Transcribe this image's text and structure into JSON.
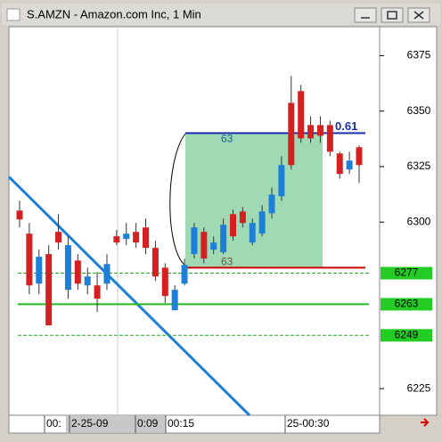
{
  "window_title": "S.AMZN - Amazon.com Inc, 1 Min",
  "chart_data": {
    "type": "candlestick",
    "colors": {
      "up": "#1e7fd8",
      "down": "#d42020"
    },
    "candles": [
      [
        6305.2,
        6309.6,
        6297.6,
        6301.2
      ],
      [
        6294.8,
        6299.6,
        6267.5,
        6271.5
      ],
      [
        6272.3,
        6287.6,
        6267.5,
        6284.4
      ],
      [
        6285.6,
        6289.6,
        6253.5,
        6253.5
      ],
      [
        6295.6,
        6303.6,
        6287.6,
        6290.8
      ],
      [
        6269.5,
        6293.6,
        6265.5,
        6289.6
      ],
      [
        6282.7,
        6285.6,
        6269.5,
        6272.3
      ],
      [
        6271.5,
        6279.5,
        6267.5,
        6275.5
      ],
      [
        6271.5,
        6277.5,
        6259.5,
        6265.5
      ],
      [
        6272.3,
        6285.6,
        6269.5,
        6281.1
      ],
      [
        6293.6,
        6296.4,
        6289.6,
        6290.8
      ],
      [
        6292.4,
        6299.6,
        6289.6,
        6294.8
      ],
      [
        6295.6,
        6299.6,
        6288.4,
        6290.8
      ],
      [
        6297.6,
        6301.6,
        6285.6,
        6288.4
      ],
      [
        6288.4,
        6291.6,
        6273.5,
        6275.5
      ],
      [
        6279.5,
        6281.5,
        6263.5,
        6266.7
      ],
      [
        6260.3,
        6271.5,
        6260.3,
        6269.5
      ],
      [
        6272.3,
        6283.6,
        6271.5,
        6280.7
      ],
      [
        6285.6,
        6299.6,
        6283.6,
        6297.6
      ],
      [
        6295.6,
        6297.6,
        6281.5,
        6283.6
      ],
      [
        6287.6,
        6293.6,
        6285.6,
        6290.8
      ],
      [
        6286.4,
        6301.6,
        6285.6,
        6298.8
      ],
      [
        6303.6,
        6305.6,
        6291.6,
        6293.6
      ],
      [
        6304.8,
        6306.8,
        6297.6,
        6299.6
      ],
      [
        6290.8,
        6301.6,
        6289.6,
        6299.6
      ],
      [
        6294.8,
        6307.6,
        6293.6,
        6304.8
      ],
      [
        6304.0,
        6315.6,
        6301.6,
        6312.4
      ],
      [
        6311.6,
        6329.7,
        6309.6,
        6325.7
      ],
      [
        6353.7,
        6365.8,
        6323.7,
        6325.7
      ],
      [
        6359.0,
        6361.8,
        6335.7,
        6337.7
      ],
      [
        6343.7,
        6347.7,
        6335.7,
        6337.7
      ],
      [
        6343.7,
        6347.7,
        6335.7,
        6338.9
      ],
      [
        6343.7,
        6345.7,
        6329.7,
        6331.7
      ],
      [
        6330.9,
        6331.7,
        6319.6,
        6321.7
      ],
      [
        6323.7,
        6331.7,
        6321.7,
        6327.7
      ],
      [
        6333.7,
        6334.5,
        6317.6,
        6325.7
      ]
    ],
    "ylim": [
      6213,
      6388
    ],
    "yticks": [
      6225,
      6300,
      6325,
      6350,
      6375
    ],
    "x_labels": [
      "00:",
      "2-25-09",
      "0:09",
      "00:15",
      "25-00:30"
    ],
    "levels": [
      {
        "value": 6277,
        "label": "6277",
        "style": "dashed",
        "color": "#22aa22"
      },
      {
        "value": 6263,
        "label": "6263",
        "style": "solid",
        "color": "#22bb22"
      },
      {
        "value": 6249,
        "label": "6249",
        "style": "dashed",
        "color": "#22aa22"
      }
    ],
    "red_line": 6279.5,
    "blue_line": 6340.1,
    "blue_label": "0.61",
    "box_label": "63",
    "trendline": [
      6320.4,
      6213
    ]
  }
}
